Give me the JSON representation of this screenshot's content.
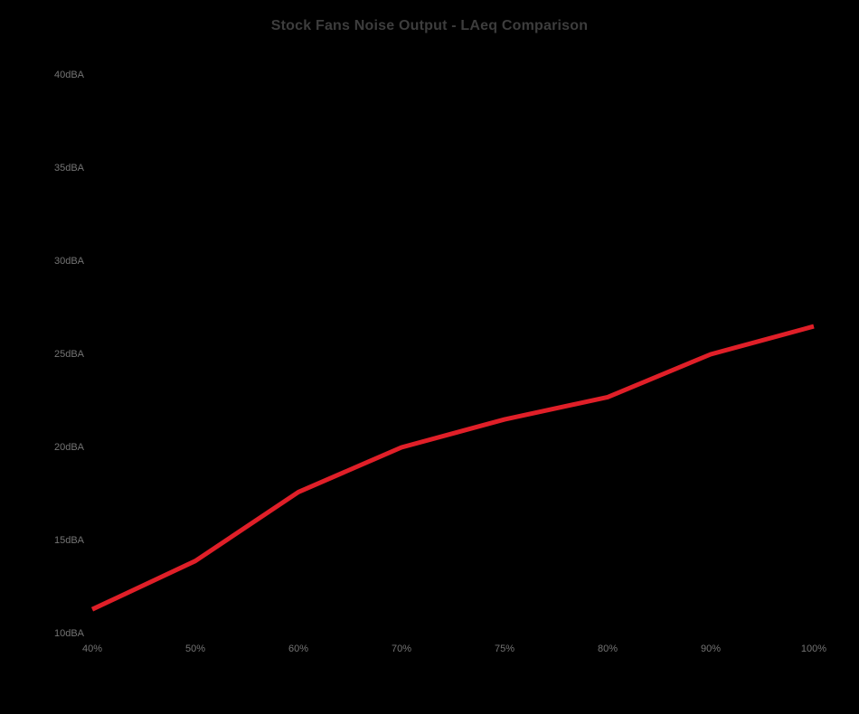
{
  "chart_data": {
    "type": "line",
    "title": "Stock Fans Noise Output - LAeq Comparison",
    "categories": [
      "40%",
      "50%",
      "60%",
      "70%",
      "75%",
      "80%",
      "90%",
      "100%"
    ],
    "values": [
      11.3,
      13.9,
      17.6,
      20.0,
      21.5,
      22.7,
      25.0,
      26.5
    ],
    "xlabel": "",
    "ylabel": "",
    "ylim": [
      10,
      40
    ],
    "ytick_step": 5,
    "ytick_suffix": "dBA",
    "grid": false,
    "legend_position": "none",
    "colors": {
      "line": "#e01f28",
      "title": "#3d3d3d",
      "tick_label": "#747474",
      "background": "#000000"
    }
  }
}
